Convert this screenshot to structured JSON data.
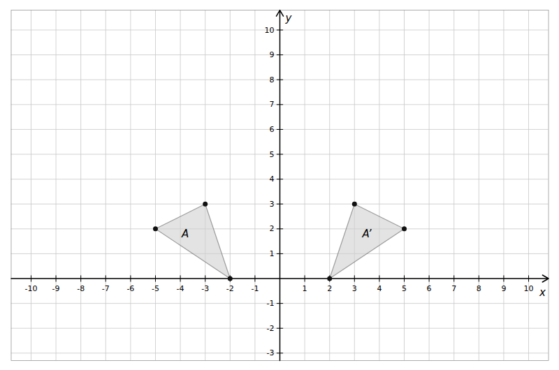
{
  "chart_data": {
    "type": "polygon",
    "series": [
      {
        "x": [
          -5,
          -3,
          -2
        ],
        "y": [
          2,
          3,
          0
        ],
        "color": "#d0d0d0",
        "marker": "circle"
      },
      {
        "x": [
          2,
          3,
          5
        ],
        "y": [
          0,
          3,
          2
        ],
        "color": "#d0d0d0",
        "marker": "circle"
      }
    ],
    "annotations": [
      {
        "text": "A",
        "x": -3.8,
        "y": 1.8
      },
      {
        "text": "A’",
        "x": 3.5,
        "y": 1.8
      }
    ],
    "x_label": "x",
    "y_label": "y",
    "xlim": [
      -10.8,
      10.8
    ],
    "ylim": [
      -3.3,
      10.8
    ],
    "xticks": [
      -10,
      -9,
      -8,
      -7,
      -6,
      -5,
      -4,
      -3,
      -2,
      -1,
      1,
      2,
      3,
      4,
      5,
      6,
      7,
      8,
      9,
      10
    ],
    "yticks": [
      -3,
      -2,
      -1,
      1,
      2,
      3,
      4,
      5,
      6,
      7,
      8,
      9,
      10
    ],
    "grid": true
  }
}
